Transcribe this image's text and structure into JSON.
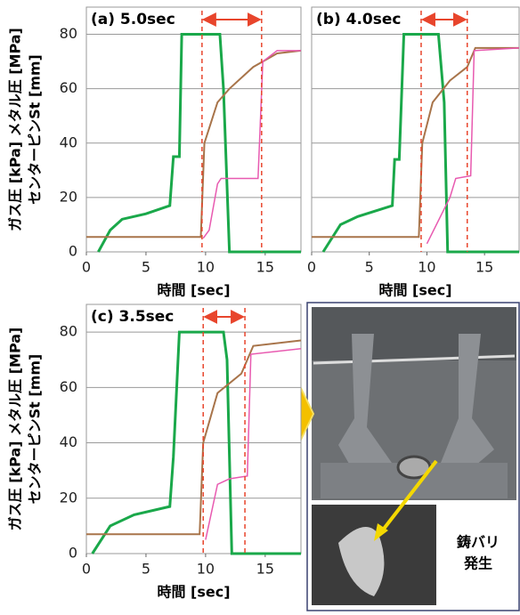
{
  "chart_data": [
    {
      "type": "line",
      "title": "(a) 5.0sec",
      "ylabel": [
        "ガス圧 [kPa] メタル圧 [MPa]",
        "センターピンSt [mm]"
      ],
      "xlabel": "時間 [sec]",
      "xlim": [
        0,
        18
      ],
      "xticks": [
        0,
        5,
        10,
        15
      ],
      "ylim": [
        0,
        90
      ],
      "yticks": [
        0,
        20,
        40,
        60,
        80
      ],
      "grid": true,
      "show_ytick_labels": true,
      "interval": [
        9.7,
        14.7
      ],
      "interval_color": "#e8452c",
      "series": [
        {
          "color": "#1aa84a",
          "x": [
            1,
            2,
            3,
            5,
            7,
            7.3,
            7.8,
            8,
            11.2,
            11.5,
            12,
            18
          ],
          "values": [
            0,
            8,
            12,
            14,
            17,
            35,
            35,
            80,
            80,
            60,
            0,
            0
          ]
        },
        {
          "color": "#a8744a",
          "x": [
            0,
            9.6,
            9.9,
            11,
            12,
            14,
            16,
            18
          ],
          "values": [
            5.5,
            5.5,
            40,
            55,
            60,
            68,
            73,
            74
          ]
        },
        {
          "color": "#e85ab0",
          "x": [
            9.8,
            10.3,
            11,
            11.3,
            14.4,
            14.8,
            16,
            18
          ],
          "values": [
            5,
            8,
            25,
            27,
            27,
            70,
            74,
            74
          ]
        }
      ]
    },
    {
      "type": "line",
      "title": "(b) 4.0sec",
      "xlabel": "時間 [sec]",
      "xlim": [
        0,
        18
      ],
      "xticks": [
        0,
        5,
        10,
        15
      ],
      "ylim": [
        0,
        90
      ],
      "yticks": [
        0,
        20,
        40,
        60,
        80
      ],
      "grid": true,
      "show_ytick_labels": false,
      "interval": [
        9.5,
        13.5
      ],
      "interval_color": "#e8452c",
      "series": [
        {
          "color": "#1aa84a",
          "x": [
            1,
            2.5,
            4,
            7,
            7.2,
            7.6,
            8,
            11,
            11.5,
            11.8,
            18
          ],
          "values": [
            0,
            10,
            13,
            17,
            34,
            34,
            80,
            80,
            55,
            0,
            0
          ]
        },
        {
          "color": "#a8744a",
          "x": [
            0,
            9.3,
            9.6,
            10.5,
            12,
            13.5,
            14.2,
            18
          ],
          "values": [
            5.5,
            5.5,
            40,
            55,
            63,
            68,
            75,
            75
          ]
        },
        {
          "color": "#e85ab0",
          "x": [
            10,
            12,
            12.5,
            13.8,
            14.1,
            18
          ],
          "values": [
            3,
            20,
            27,
            28,
            74,
            75
          ]
        }
      ]
    },
    {
      "type": "line",
      "title": "(c) 3.5sec",
      "ylabel": [
        "ガス圧 [kPa] メタル圧 [MPa]",
        "センターピンSt [mm]"
      ],
      "xlabel": "時間 [sec]",
      "xlim": [
        0,
        18
      ],
      "xticks": [
        0,
        5,
        10,
        15
      ],
      "ylim": [
        0,
        90
      ],
      "yticks": [
        0,
        20,
        40,
        60,
        80
      ],
      "grid": true,
      "show_ytick_labels": true,
      "interval": [
        9.8,
        13.3
      ],
      "interval_color": "#e8452c",
      "series": [
        {
          "color": "#1aa84a",
          "x": [
            0.5,
            2,
            4,
            7,
            7.3,
            7.8,
            11.5,
            11.8,
            12.2,
            18
          ],
          "values": [
            0,
            10,
            14,
            17,
            35,
            80,
            80,
            70,
            0,
            0
          ]
        },
        {
          "color": "#a8744a",
          "x": [
            0,
            9.5,
            9.8,
            11,
            13,
            14,
            18
          ],
          "values": [
            7,
            7,
            40,
            58,
            65,
            75,
            77
          ]
        },
        {
          "color": "#e85ab0",
          "x": [
            10,
            11,
            12,
            13.5,
            13.8,
            18
          ],
          "values": [
            5,
            25,
            27,
            28,
            72,
            74
          ]
        }
      ]
    }
  ],
  "photo": {
    "caption": [
      "鋳バリ",
      "発生"
    ]
  }
}
